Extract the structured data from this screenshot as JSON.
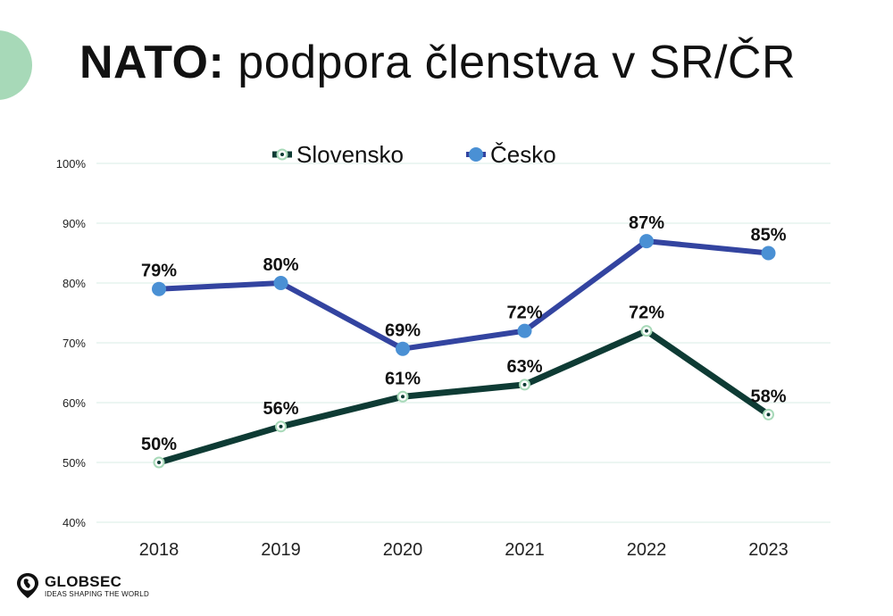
{
  "title": {
    "bold": "NATO:",
    "rest": "podpora členstva v SR/ČR"
  },
  "logo": {
    "name": "GLOBSEC",
    "tagline": "IDEAS SHAPING THE WORLD"
  },
  "colors": {
    "slovensko": "#0e3b34",
    "slovensko_marker": "#a7d9b8",
    "cesko": "#3344a0",
    "cesko_marker": "#4a90d4",
    "grid": "#d9ede4"
  },
  "chart_data": {
    "type": "line",
    "title": "NATO: podpora členstva v SR/ČR",
    "categories": [
      "2018",
      "2019",
      "2020",
      "2021",
      "2022",
      "2023"
    ],
    "ylim": [
      40,
      100
    ],
    "yticks": [
      40,
      50,
      60,
      70,
      80,
      90,
      100
    ],
    "ytick_labels": [
      "40%",
      "50%",
      "60%",
      "70%",
      "80%",
      "90%",
      "100%"
    ],
    "legend_position": "top-center",
    "grid": true,
    "series": [
      {
        "name": "Slovensko",
        "values": [
          50,
          56,
          61,
          63,
          72,
          58
        ],
        "labels": [
          "50%",
          "56%",
          "61%",
          "63%",
          "72%",
          "58%"
        ]
      },
      {
        "name": "Česko",
        "values": [
          79,
          80,
          69,
          72,
          87,
          85
        ],
        "labels": [
          "79%",
          "80%",
          "69%",
          "72%",
          "87%",
          "85%"
        ]
      }
    ]
  }
}
